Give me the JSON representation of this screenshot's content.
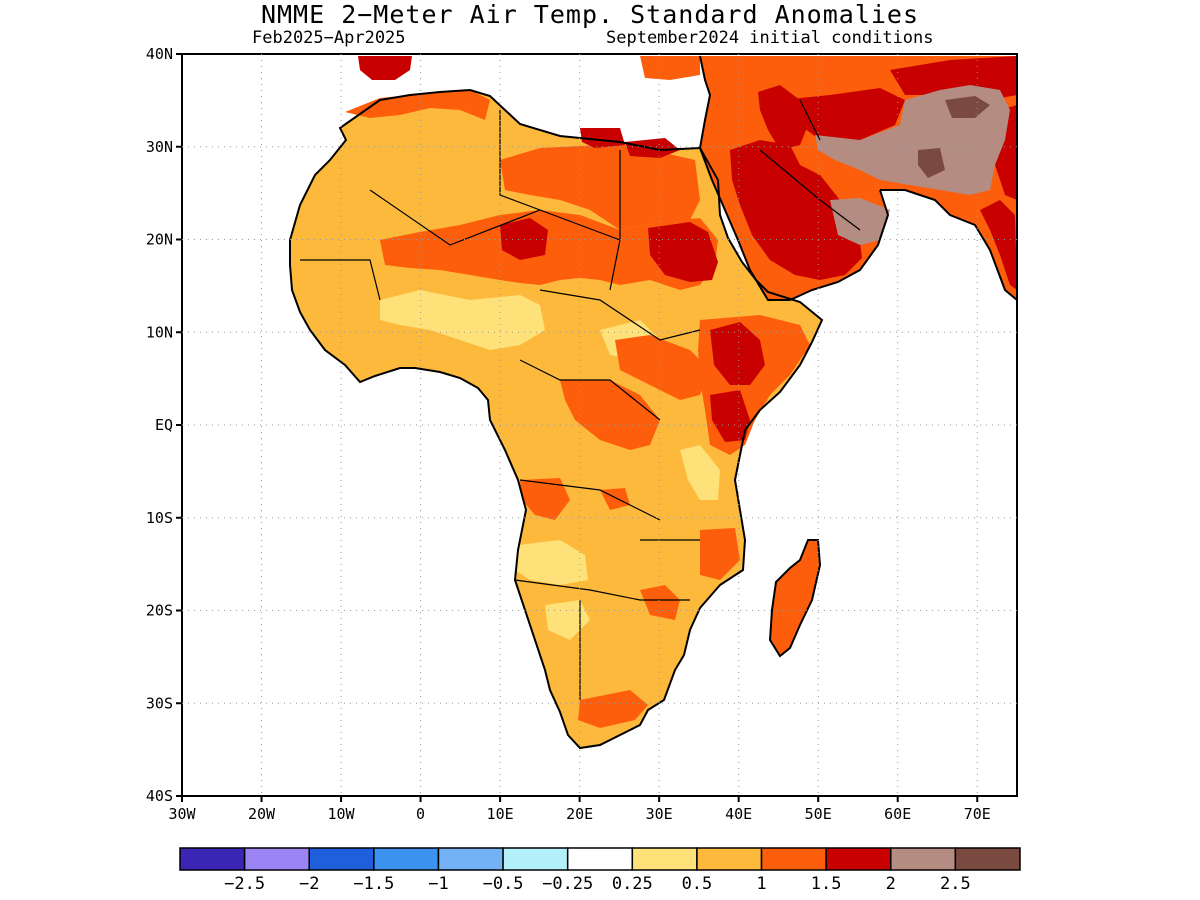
{
  "title": "NMME 2−Meter Air Temp. Standard Anomalies",
  "subtitle_left": "Feb2025−Apr2025",
  "subtitle_right": "September2024 initial conditions",
  "map": {
    "lon_range": [
      -30,
      75
    ],
    "lat_range": [
      -40,
      40
    ],
    "lat_ticks": [
      {
        "value": 40,
        "label": "40N"
      },
      {
        "value": 30,
        "label": "30N"
      },
      {
        "value": 20,
        "label": "20N"
      },
      {
        "value": 10,
        "label": "10N"
      },
      {
        "value": 0,
        "label": "EQ"
      },
      {
        "value": -10,
        "label": "10S"
      },
      {
        "value": -20,
        "label": "20S"
      },
      {
        "value": -30,
        "label": "30S"
      },
      {
        "value": -40,
        "label": "40S"
      }
    ],
    "lon_ticks": [
      {
        "value": -30,
        "label": "30W"
      },
      {
        "value": -20,
        "label": "20W"
      },
      {
        "value": -10,
        "label": "10W"
      },
      {
        "value": 0,
        "label": "0"
      },
      {
        "value": 10,
        "label": "10E"
      },
      {
        "value": 20,
        "label": "20E"
      },
      {
        "value": 30,
        "label": "30E"
      },
      {
        "value": 40,
        "label": "40E"
      },
      {
        "value": 50,
        "label": "50E"
      },
      {
        "value": 60,
        "label": "60E"
      },
      {
        "value": 70,
        "label": "70E"
      }
    ]
  },
  "colorbar": {
    "colors": [
      "#3a25b5",
      "#9b85f5",
      "#1f5fdc",
      "#3c92f0",
      "#74b2f5",
      "#b4f0fa",
      "#ffffff",
      "#ffe17a",
      "#fdb93c",
      "#fd5e0c",
      "#c80000",
      "#b48c82",
      "#7a4a40"
    ],
    "labels": [
      "−2.5",
      "−2",
      "−1.5",
      "−1",
      "−0.5",
      "−0.25",
      "0.25",
      "0.5",
      "1",
      "1.5",
      "2",
      "2.5"
    ]
  }
}
